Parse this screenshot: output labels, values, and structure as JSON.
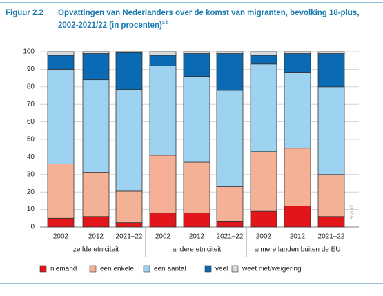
{
  "chart_data": {
    "type": "stacked_bar",
    "figure_label": "Figuur 2.2",
    "title_lines": [
      "Opvattingen van Nederlanders over de komst van migranten, bevolking 18-plus,",
      "2002-2021/22 (in procenten)"
    ],
    "title_superscript": "a b",
    "categories": [
      "2002",
      "2012",
      "2021–22",
      "2002",
      "2012",
      "2021–22",
      "2002",
      "2012",
      "2021–22"
    ],
    "groups": [
      "zelfde etniciteit",
      "andere etniciteit",
      "armere landen buiten de EU"
    ],
    "series": [
      {
        "name": "niemand",
        "color": "#e2151b",
        "values": [
          5,
          6,
          2.5,
          8,
          8,
          3,
          9,
          12,
          6
        ]
      },
      {
        "name": "een enkele",
        "color": "#f4b196",
        "values": [
          31,
          25,
          18,
          33,
          29,
          20,
          34,
          33,
          24
        ]
      },
      {
        "name": "een aantal",
        "color": "#9dd3f1",
        "values": [
          54,
          53,
          58,
          51,
          49,
          55,
          50,
          43,
          50
        ]
      },
      {
        "name": "veel",
        "color": "#0a6bb4",
        "values": [
          8,
          15,
          21,
          6,
          13,
          21,
          5,
          11,
          19
        ]
      },
      {
        "name": "weet niet/weigering",
        "color": "#d9d9d9",
        "values": [
          2,
          1,
          0.5,
          2,
          1,
          1,
          2,
          1,
          1
        ]
      }
    ],
    "ylim": [
      0,
      100
    ],
    "yticks": [
      0,
      10,
      20,
      30,
      40,
      50,
      60,
      70,
      80,
      90,
      100
    ],
    "grid": true,
    "watermark": "scp.nl"
  }
}
